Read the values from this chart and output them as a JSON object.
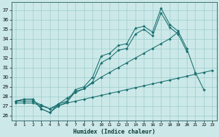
{
  "xlabel": "Humidex (Indice chaleur)",
  "bg_color": "#cce8e8",
  "grid_color": "#99cccc",
  "line_color": "#1a7070",
  "xlim": [
    -0.5,
    23.5
  ],
  "ylim": [
    25.5,
    37.8
  ],
  "yticks": [
    26,
    27,
    28,
    29,
    30,
    31,
    32,
    33,
    34,
    35,
    36,
    37
  ],
  "xticks": [
    0,
    1,
    2,
    3,
    4,
    5,
    6,
    7,
    8,
    9,
    10,
    11,
    12,
    13,
    14,
    15,
    16,
    17,
    18,
    19,
    20,
    21,
    22,
    23
  ],
  "line1_y": [
    27.5,
    27.7,
    27.7,
    26.7,
    26.3,
    27.2,
    27.5,
    28.7,
    29.0,
    30.0,
    32.2,
    32.5,
    33.3,
    33.5,
    35.1,
    35.3,
    34.7,
    37.2,
    35.5,
    34.8,
    33.0,
    30.5,
    28.7,
    null
  ],
  "line2_y": [
    27.5,
    27.7,
    27.7,
    26.7,
    26.3,
    27.0,
    27.4,
    28.5,
    28.8,
    29.5,
    31.5,
    32.0,
    32.8,
    33.0,
    34.5,
    35.0,
    34.3,
    36.7,
    35.2,
    34.5,
    32.7,
    null,
    null,
    null
  ],
  "line3_y": [
    27.5,
    27.5,
    27.5,
    27.1,
    26.7,
    27.2,
    27.8,
    28.4,
    28.8,
    29.4,
    30.0,
    30.5,
    31.0,
    31.5,
    32.0,
    32.5,
    33.0,
    33.5,
    34.0,
    34.7,
    null,
    null,
    null,
    null
  ],
  "line4_y": [
    27.3,
    27.3,
    27.3,
    27.0,
    26.7,
    27.0,
    27.3,
    27.5,
    27.7,
    27.9,
    28.1,
    28.3,
    28.5,
    28.7,
    28.9,
    29.1,
    29.3,
    29.5,
    29.7,
    29.9,
    30.1,
    30.3,
    30.5,
    30.7
  ]
}
